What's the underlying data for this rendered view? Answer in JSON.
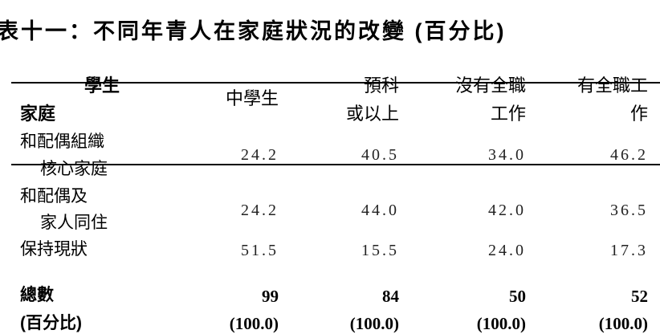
{
  "title": "表十一：不同年青人在家庭狀況的改變 (百分比)",
  "header": {
    "corner_top": "學生",
    "corner_bottom": "家庭",
    "columns": [
      {
        "line1": "中學生",
        "line2": ""
      },
      {
        "line1": "預科",
        "line2": "或以上"
      },
      {
        "line1": "沒有全職",
        "line2": "工作"
      },
      {
        "line1": "有全職工",
        "line2": "作"
      }
    ]
  },
  "rows": [
    {
      "label_line1": "和配偶組織",
      "label_line2": "核心家庭",
      "values": [
        "24.2",
        "40.5",
        "34.0",
        "46.2"
      ]
    },
    {
      "label_line1": "和配偶及",
      "label_line2": "家人同住",
      "values": [
        "24.2",
        "44.0",
        "42.0",
        "36.5"
      ]
    },
    {
      "label_line1": "保持現狀",
      "label_line2": "",
      "values": [
        "51.5",
        "15.5",
        "24.0",
        "17.3"
      ]
    }
  ],
  "total": {
    "label": "總數",
    "values": [
      "99",
      "84",
      "50",
      "52"
    ],
    "pct_label": "(百分比)",
    "pct_values": [
      "(100.0)",
      "(100.0)",
      "(100.0)",
      "(100.0)"
    ]
  }
}
